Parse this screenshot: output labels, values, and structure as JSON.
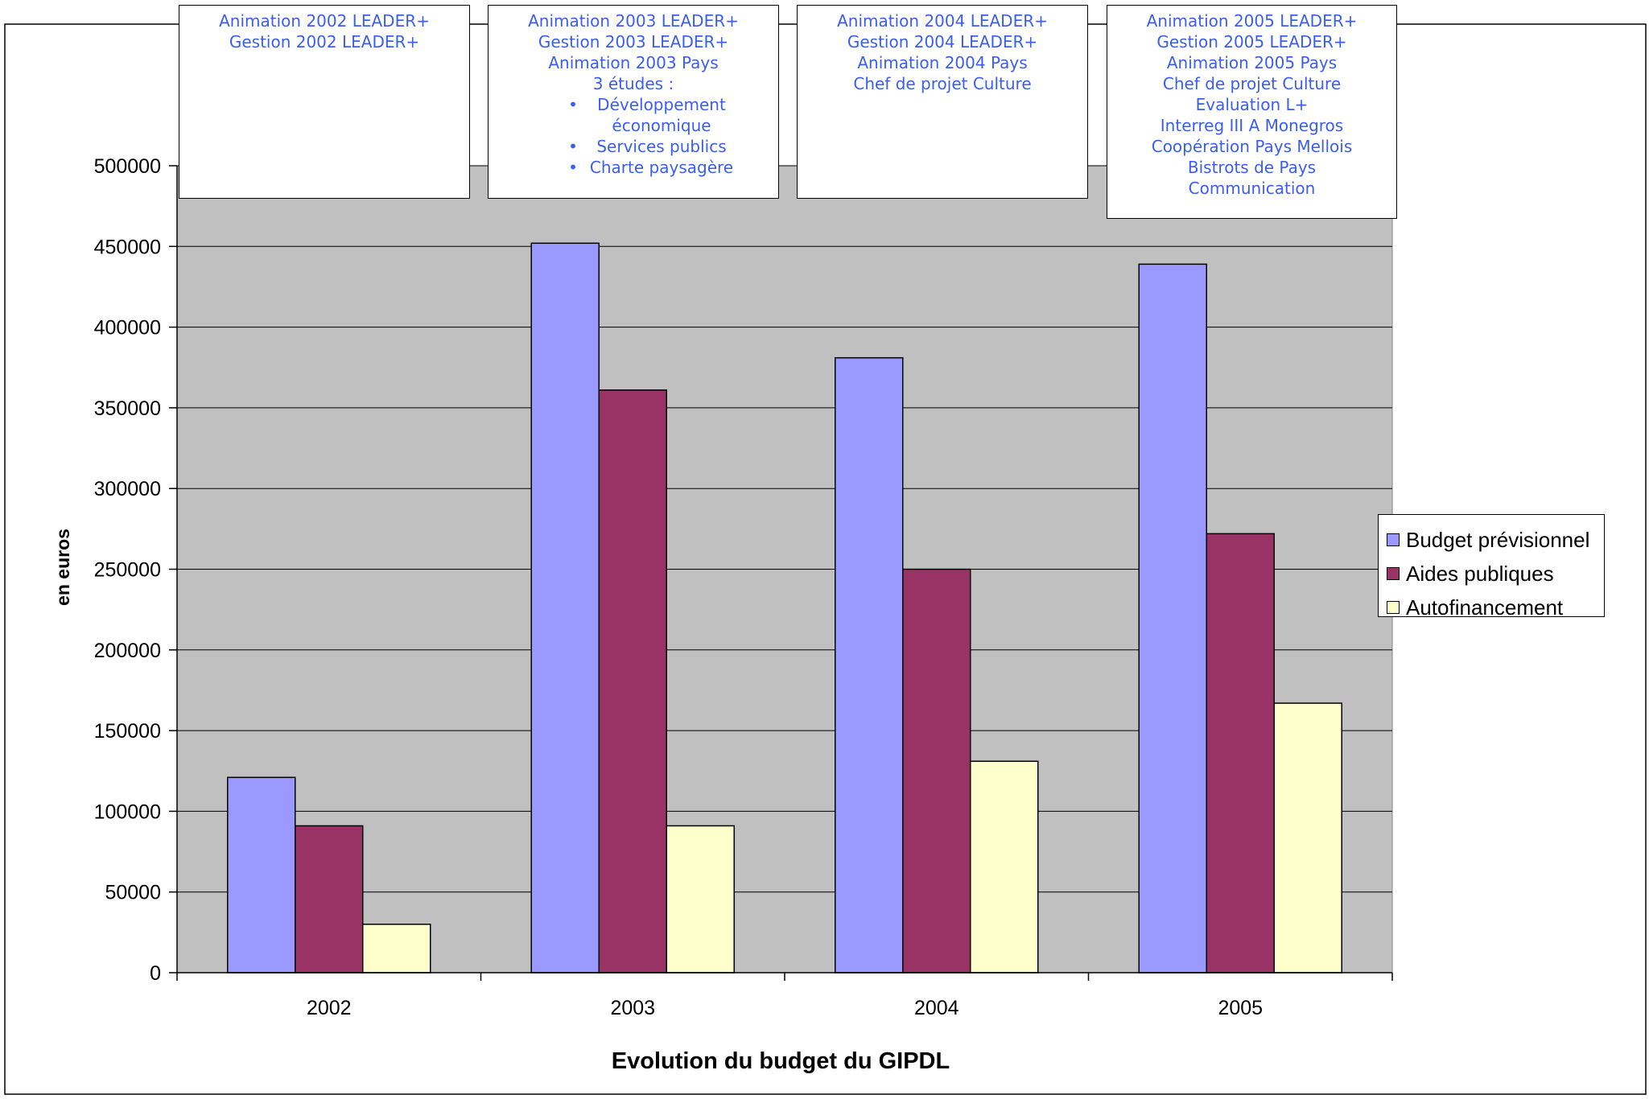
{
  "colors": {
    "plot_bg": "#c0c0c0",
    "annotation_text": "#3a5ef0",
    "series_1": "#9999ff",
    "series_2": "#993366",
    "series_3": "#ffffcc"
  },
  "annotations": [
    {
      "lines": [
        "Animation  2002 LEADER+",
        "Gestion 2002 LEADER+"
      ],
      "bullets": []
    },
    {
      "lines": [
        "Animation 2003 LEADER+",
        "Gestion 2003 LEADER+",
        "Animation 2003 Pays",
        "3 études :"
      ],
      "bullets": [
        "Développement économique",
        "Services publics",
        "Charte paysagère"
      ]
    },
    {
      "lines": [
        "Animation 2004 LEADER+",
        "Gestion 2004 LEADER+",
        "Animation 2004 Pays",
        "Chef de projet Culture"
      ],
      "bullets": []
    },
    {
      "lines": [
        "Animation 2005 LEADER+",
        "Gestion 2005 LEADER+",
        "Animation 2005 Pays",
        "Chef de projet Culture",
        "Evaluation L+",
        "Interreg III A Monegros",
        "Coopération Pays Mellois",
        "Bistrots de Pays",
        "Communication"
      ],
      "bullets": []
    }
  ],
  "chart_data": {
    "type": "bar",
    "title": "",
    "xlabel": "Evolution du budget du GIPDL",
    "ylabel": "en euros",
    "categories": [
      "2002",
      "2003",
      "2004",
      "2005"
    ],
    "series": [
      {
        "name": "Budget prévisionnel",
        "values": [
          121000,
          452000,
          381000,
          439000
        ]
      },
      {
        "name": "Aides publiques",
        "values": [
          91000,
          361000,
          250000,
          272000
        ]
      },
      {
        "name": "Autofinancement",
        "values": [
          30000,
          91000,
          131000,
          167000
        ]
      }
    ],
    "ylim": [
      0,
      500000
    ],
    "yticks": [
      "0",
      "50000",
      "100000",
      "150000",
      "200000",
      "250000",
      "300000",
      "350000",
      "400000",
      "450000",
      "500000"
    ],
    "grid": true,
    "legend_position": "right"
  }
}
